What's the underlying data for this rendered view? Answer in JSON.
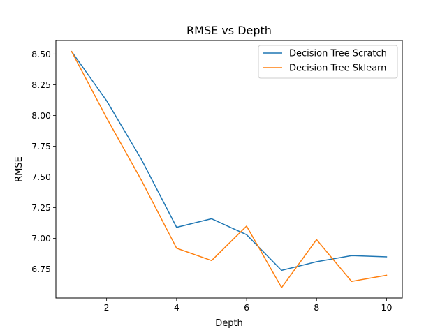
{
  "chart_data": {
    "type": "line",
    "title": "RMSE vs Depth",
    "xlabel": "Depth",
    "ylabel": "RMSE",
    "x": [
      1,
      2,
      3,
      4,
      5,
      6,
      7,
      8,
      9,
      10
    ],
    "xlim": [
      0.55,
      10.45
    ],
    "ylim": [
      6.515,
      8.61
    ],
    "xticks": [
      2,
      4,
      6,
      8,
      10
    ],
    "yticks": [
      6.75,
      7.0,
      7.25,
      7.5,
      7.75,
      8.0,
      8.25,
      8.5
    ],
    "ytick_labels": [
      "6.75",
      "7.00",
      "7.25",
      "7.50",
      "7.75",
      "8.00",
      "8.25",
      "8.50"
    ],
    "grid": false,
    "legend_position": "top-right",
    "series": [
      {
        "name": "Decision Tree Scratch",
        "color": "#1f77b4",
        "values": [
          8.52,
          8.12,
          7.64,
          7.09,
          7.16,
          7.03,
          6.74,
          6.81,
          6.86,
          6.85
        ]
      },
      {
        "name": "Decision Tree Sklearn",
        "color": "#ff7f0e",
        "values": [
          8.52,
          7.98,
          7.47,
          6.92,
          6.82,
          7.1,
          6.6,
          6.99,
          6.65,
          6.7
        ]
      }
    ]
  }
}
